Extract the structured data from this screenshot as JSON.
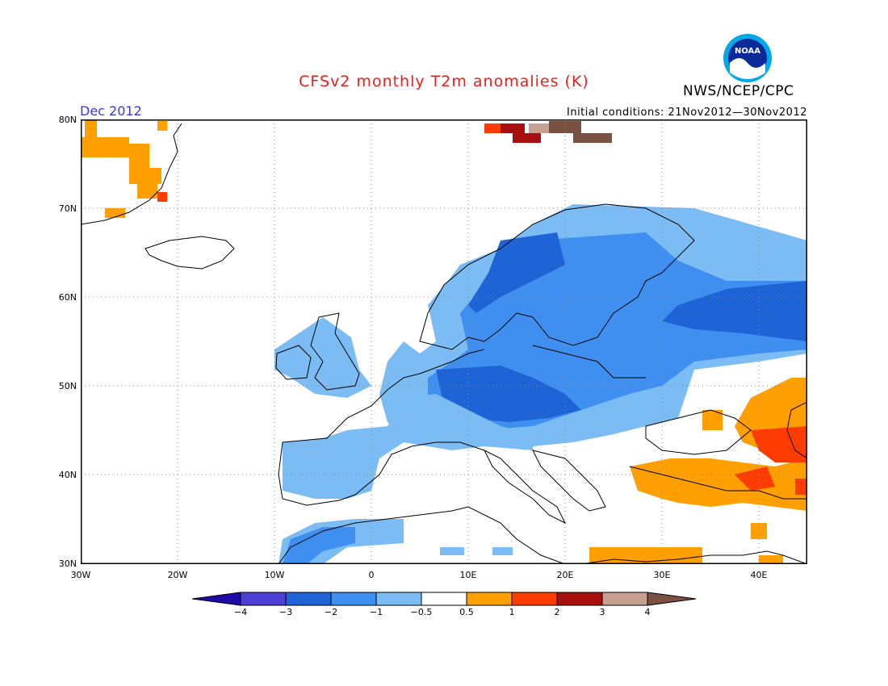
{
  "header": {
    "title": "CFSv2 monthly T2m anomalies (K)",
    "agency": "NWS/NCEP/CPC",
    "month": "Dec 2012",
    "initial_conditions": "Initial conditions: 21Nov2012—30Nov2012",
    "logo_text": "NOAA"
  },
  "map": {
    "lon_range": [
      -30,
      45
    ],
    "lat_range": [
      30,
      80
    ],
    "lat_labels": [
      "80N",
      "70N",
      "60N",
      "50N",
      "40N",
      "30N"
    ],
    "lon_labels": [
      "30W",
      "20W",
      "10W",
      "0",
      "10E",
      "20E",
      "30E",
      "40E"
    ],
    "anomaly_regions": [
      {
        "name": "greenland-east",
        "class": 0.5,
        "lon": [
          -30,
          -22
        ],
        "lat": [
          69,
          80
        ]
      },
      {
        "name": "svalbard",
        "class": 3,
        "lon": [
          12,
          27
        ],
        "lat": [
          78,
          80
        ]
      },
      {
        "name": "scandinavia-russia",
        "class": -2,
        "lon": [
          -5,
          45
        ],
        "lat": [
          50,
          71
        ]
      },
      {
        "name": "central-europe",
        "class": -2,
        "lon": [
          0,
          25
        ],
        "lat": [
          44,
          55
        ]
      },
      {
        "name": "british-isles",
        "class": -1,
        "lon": [
          -10,
          2
        ],
        "lat": [
          50,
          59
        ]
      },
      {
        "name": "iberia",
        "class": -1,
        "lon": [
          -10,
          4
        ],
        "lat": [
          36,
          44
        ]
      },
      {
        "name": "north-africa",
        "class": -2,
        "lon": [
          -10,
          3
        ],
        "lat": [
          30,
          36
        ]
      },
      {
        "name": "turkey",
        "class": 0.5,
        "lon": [
          26,
          45
        ],
        "lat": [
          36,
          42
        ]
      },
      {
        "name": "caucasus",
        "class": 1,
        "lon": [
          39,
          45
        ],
        "lat": [
          40,
          49
        ]
      },
      {
        "name": "middle-east",
        "class": 0.5,
        "lon": [
          24,
          45
        ],
        "lat": [
          30,
          36
        ]
      }
    ]
  },
  "colorbar": {
    "labels": [
      "−4",
      "−3",
      "−2",
      "−1",
      "−0.5",
      "0.5",
      "1",
      "2",
      "3",
      "4"
    ],
    "colors": [
      "#1e0aa8",
      "#4b3fd6",
      "#1f64d6",
      "#3f8ff0",
      "#7bbcf4",
      "#ffffff",
      "#ffa000",
      "#ff3c00",
      "#a80e0e",
      "#c8a090",
      "#7a5040"
    ]
  }
}
